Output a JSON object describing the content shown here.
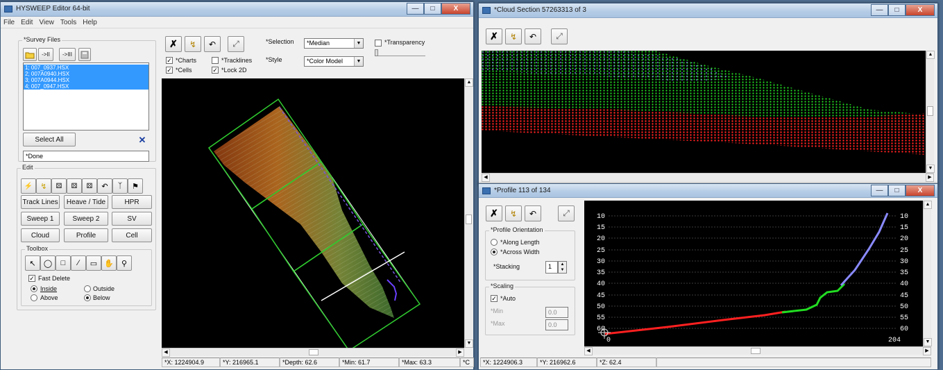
{
  "editor": {
    "title": "HYSWEEP Editor 64-bit",
    "menu": [
      "File",
      "Edit",
      "View",
      "Tools",
      "Help"
    ],
    "survey_files": {
      "label": "*Survey Files",
      "files": [
        "1; 007_0937.HSX",
        "2; 007A0940.HSX",
        "3; 007A0944.HSX",
        "4; 007_0947.HSX"
      ],
      "select_all": "Select All",
      "status": "*Done",
      "btn_prev": "->II",
      "btn_next": "->III"
    },
    "edit": {
      "label": "Edit",
      "buttons": [
        "Track Lines",
        "Heave / Tide",
        "HPR",
        "Sweep 1",
        "Sweep 2",
        "SV",
        "Cloud",
        "Profile",
        "Cell"
      ]
    },
    "toolbox": {
      "label": "Toolbox",
      "fast_delete": "Fast Delete",
      "inside": "Inside",
      "outside": "Outside",
      "above": "Above",
      "below": "Below"
    },
    "view": {
      "charts": "*Charts",
      "tracklines": "*Tracklines",
      "cells": "*Cells",
      "lock2d": "*Lock 2D",
      "selection_label": "*Selection",
      "selection_value": "*Median",
      "style_label": "*Style",
      "style_value": "*Color Model",
      "transparency": "*Transparency"
    },
    "status": [
      "*X: 1224904.9",
      "*Y: 216965.1",
      "*Depth: 62.6",
      "*Min: 61.7",
      "*Max: 63.3",
      "*C"
    ]
  },
  "cloud": {
    "title": "*Cloud Section 57263313 of 3"
  },
  "profile": {
    "title": "*Profile 113 of 134",
    "orientation_label": "*Profile Orientation",
    "along": "*Along Length",
    "across": "*Across Width",
    "stacking_label": "*Stacking",
    "stacking_value": "1",
    "scaling_label": "*Scaling",
    "auto": "*Auto",
    "min_label": "*Min",
    "min_value": "0.0",
    "max_label": "*Max",
    "max_value": "0.0",
    "depth_ticks": [
      "10",
      "15",
      "20",
      "25",
      "30",
      "35",
      "40",
      "45",
      "50",
      "55",
      "60"
    ],
    "x_start": "0",
    "x_end": "204",
    "status": [
      "*X: 1224906.3",
      "*Y: 216962.6",
      "*Z: 62.4"
    ]
  },
  "colors": {
    "accent": "#3399ff",
    "red": "#ff2020",
    "green": "#22dd22",
    "blue": "#8080ff"
  }
}
